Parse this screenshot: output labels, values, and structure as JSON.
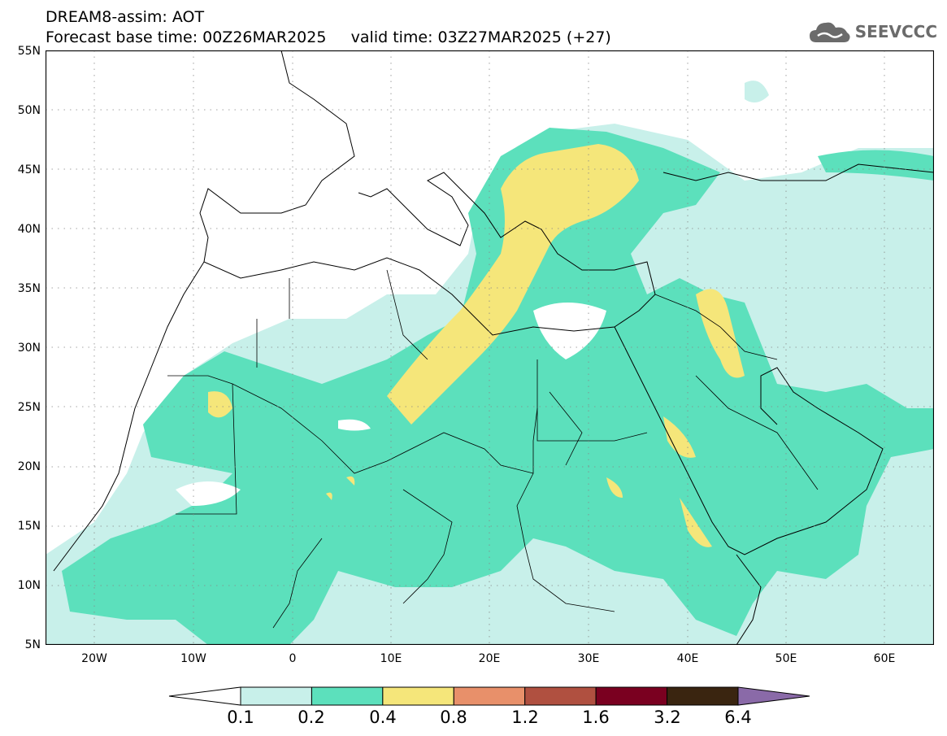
{
  "title": {
    "line1": "DREAM8-assim: AOT",
    "line2": "Forecast base time: 00Z26MAR2025     valid time: 03Z27MAR2025 (+27)"
  },
  "logo": {
    "text": "SEEVCCC",
    "icon": "cloud-icon",
    "color": "#6b6b6b"
  },
  "map": {
    "lat_range": [
      5,
      55
    ],
    "lon_range": [
      -25,
      65
    ],
    "lat_labels": [
      "55N",
      "50N",
      "45N",
      "40N",
      "35N",
      "30N",
      "25N",
      "20N",
      "15N",
      "10N",
      "5N"
    ],
    "lon_labels": [
      "20W",
      "10W",
      "0",
      "10E",
      "20E",
      "30E",
      "40E",
      "50E",
      "60E"
    ],
    "grid": "dotted"
  },
  "colorbar": {
    "labels": [
      "0.1",
      "0.2",
      "0.4",
      "0.8",
      "1.2",
      "1.6",
      "3.2",
      "6.4"
    ],
    "colors": [
      "#ffffff",
      "#c8f0ea",
      "#5ce0bc",
      "#f5e67a",
      "#e8906a",
      "#b05040",
      "#7a0020",
      "#3a2510",
      "#8a6aa8"
    ]
  }
}
